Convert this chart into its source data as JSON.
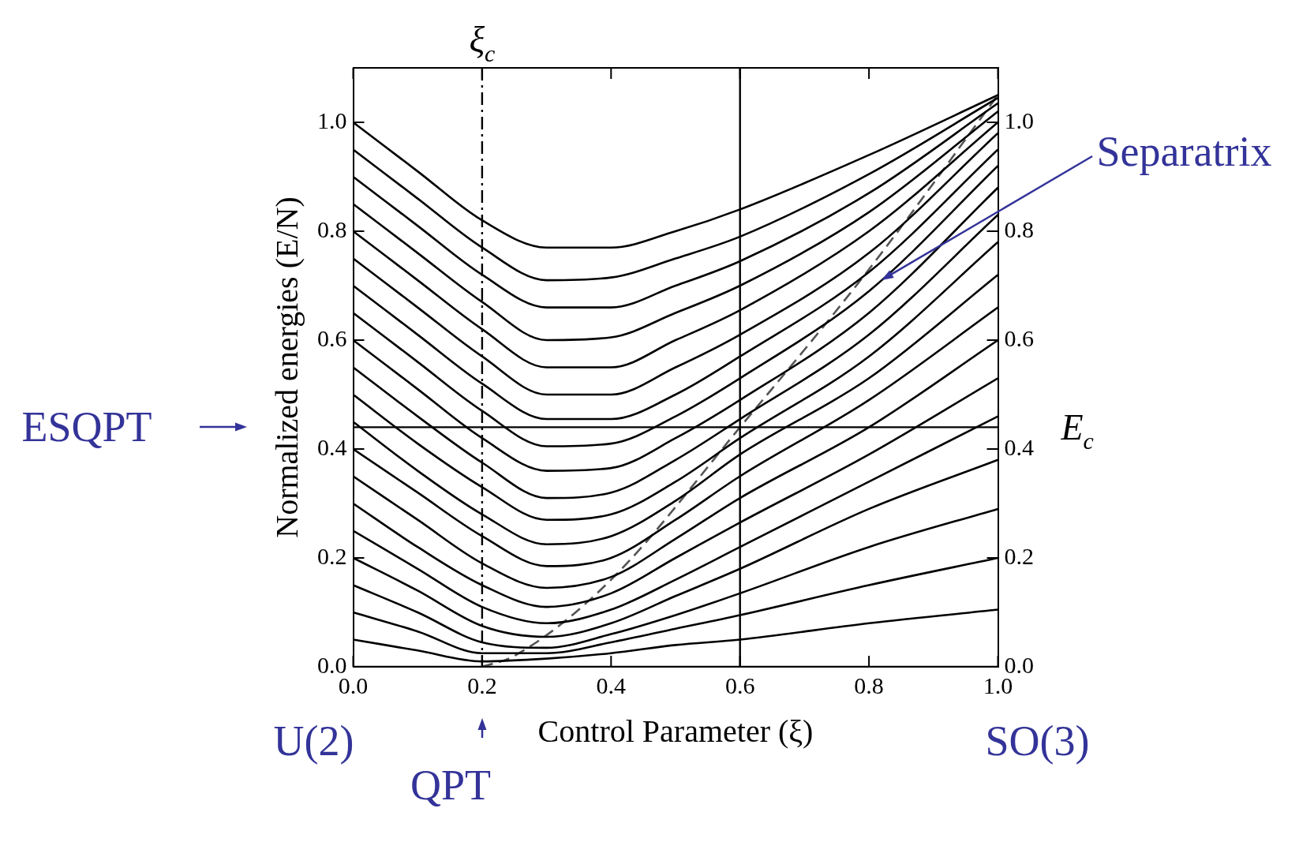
{
  "chart_data": {
    "type": "line",
    "xlabel": "Control Parameter (ξ)",
    "ylabel": "Normalized energies (E/N)",
    "x": [
      0,
      0.1,
      0.2,
      0.3,
      0.4,
      0.5,
      0.6,
      0.8,
      1.0
    ],
    "series": [
      {
        "color": "#000000",
        "values": [
          1.0,
          0.91,
          0.82,
          0.77,
          0.77,
          0.8,
          0.84,
          0.94,
          1.05
        ]
      },
      {
        "color": "#000000",
        "values": [
          0.95,
          0.86,
          0.77,
          0.71,
          0.715,
          0.75,
          0.79,
          0.905,
          1.045
        ]
      },
      {
        "color": "#000000",
        "values": [
          0.9,
          0.81,
          0.72,
          0.66,
          0.66,
          0.7,
          0.745,
          0.87,
          1.035
        ]
      },
      {
        "color": "#000000",
        "values": [
          0.85,
          0.76,
          0.67,
          0.6,
          0.605,
          0.65,
          0.7,
          0.835,
          1.02
        ]
      },
      {
        "color": "#000000",
        "values": [
          0.8,
          0.71,
          0.62,
          0.55,
          0.55,
          0.6,
          0.655,
          0.8,
          1.0
        ]
      },
      {
        "color": "#000000",
        "values": [
          0.75,
          0.66,
          0.57,
          0.5,
          0.5,
          0.55,
          0.61,
          0.76,
          0.98
        ]
      },
      {
        "color": "#000000",
        "values": [
          0.7,
          0.61,
          0.52,
          0.455,
          0.455,
          0.5,
          0.57,
          0.725,
          0.95
        ]
      },
      {
        "color": "#000000",
        "values": [
          0.65,
          0.56,
          0.47,
          0.405,
          0.41,
          0.46,
          0.53,
          0.69,
          0.92
        ]
      },
      {
        "color": "#000000",
        "values": [
          0.6,
          0.51,
          0.42,
          0.36,
          0.365,
          0.42,
          0.49,
          0.65,
          0.88
        ]
      },
      {
        "color": "#000000",
        "values": [
          0.55,
          0.46,
          0.375,
          0.31,
          0.32,
          0.38,
          0.455,
          0.61,
          0.83
        ]
      },
      {
        "color": "#000000",
        "values": [
          0.5,
          0.41,
          0.33,
          0.27,
          0.28,
          0.34,
          0.42,
          0.57,
          0.78
        ]
      },
      {
        "color": "#000000",
        "values": [
          0.45,
          0.36,
          0.28,
          0.225,
          0.24,
          0.305,
          0.39,
          0.53,
          0.72
        ]
      },
      {
        "color": "#000000",
        "values": [
          0.4,
          0.32,
          0.24,
          0.185,
          0.2,
          0.27,
          0.35,
          0.49,
          0.66
        ]
      },
      {
        "color": "#000000",
        "values": [
          0.35,
          0.27,
          0.19,
          0.145,
          0.165,
          0.235,
          0.31,
          0.44,
          0.6
        ]
      },
      {
        "color": "#000000",
        "values": [
          0.3,
          0.22,
          0.15,
          0.11,
          0.135,
          0.2,
          0.265,
          0.39,
          0.53
        ]
      },
      {
        "color": "#000000",
        "values": [
          0.25,
          0.18,
          0.11,
          0.08,
          0.105,
          0.16,
          0.22,
          0.34,
          0.46
        ]
      },
      {
        "color": "#000000",
        "values": [
          0.2,
          0.14,
          0.075,
          0.055,
          0.08,
          0.13,
          0.18,
          0.29,
          0.38
        ]
      },
      {
        "color": "#000000",
        "values": [
          0.15,
          0.1,
          0.045,
          0.035,
          0.06,
          0.095,
          0.135,
          0.22,
          0.29
        ]
      },
      {
        "color": "#000000",
        "values": [
          0.1,
          0.065,
          0.025,
          0.025,
          0.045,
          0.07,
          0.095,
          0.15,
          0.2
        ]
      },
      {
        "color": "#000000",
        "values": [
          0.05,
          0.03,
          0.01,
          0.015,
          0.025,
          0.04,
          0.05,
          0.08,
          0.105
        ]
      },
      {
        "color": "#000000",
        "values": [
          0,
          0,
          0,
          0,
          0,
          0,
          0,
          0,
          0
        ]
      },
      {
        "color": "#555555",
        "line_style": "dashed",
        "x": [
          0.2,
          0.25,
          0.4,
          0.6,
          0.8,
          1.0
        ],
        "values": [
          0,
          0.02,
          0.16,
          0.44,
          0.73,
          1.05
        ]
      }
    ],
    "xlim": [
      0,
      1.0
    ],
    "xticks": [
      {
        "value": 0,
        "label": "0.0"
      },
      0.2,
      0.4,
      0.6,
      0.8,
      {
        "value": 1.0,
        "label": "1.0"
      }
    ],
    "ylim": [
      0,
      1.1
    ],
    "yticks": [
      {
        "value": 0,
        "label": "0.0"
      },
      0.2,
      0.4,
      0.6,
      0.8,
      {
        "value": 1.0,
        "label": "1.0"
      }
    ],
    "y2lim": [
      0,
      1.1
    ],
    "y2ticks": [
      {
        "value": 0,
        "label": "0.0"
      },
      0.2,
      0.4,
      0.6,
      0.8,
      {
        "value": 1.0,
        "label": "1.0"
      }
    ],
    "ref_lines": [
      {
        "axis": "x",
        "value": 0.2,
        "label": "ξ$_{c}$",
        "line_style": "dashdot"
      },
      {
        "axis": "x",
        "value": 0.6
      },
      {
        "axis": "y",
        "value": 0.44,
        "label": "E$_{c}$"
      }
    ],
    "annotations": [
      {
        "text": "Separatrix",
        "x": 0.82,
        "y": 0.71
      },
      "ESQPT",
      "U(2)",
      "QPT",
      "SO(3)"
    ],
    "grid": false,
    "legend": false,
    "marker": "none",
    "line_style": "solid"
  }
}
